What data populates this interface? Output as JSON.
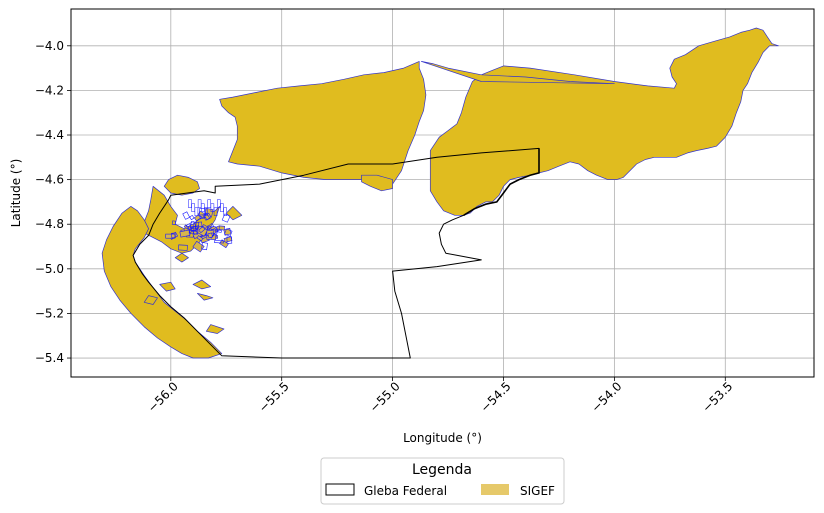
{
  "chart_data": {
    "type": "map",
    "xlabel": "Longitude (°)",
    "ylabel": "Latitude (°)",
    "xlim": [
      -56.45,
      -53.1
    ],
    "ylim": [
      -5.485,
      -3.835
    ],
    "xticks": [
      -56.0,
      -55.5,
      -55.0,
      -54.5,
      -54.0,
      -53.5
    ],
    "xtick_labels": [
      "−56.0",
      "−55.5",
      "−55.0",
      "−54.5",
      "−54.0",
      "−53.5"
    ],
    "yticks": [
      -4.0,
      -4.2,
      -4.4,
      -4.6,
      -4.8,
      -5.0,
      -5.2,
      -5.4
    ],
    "ytick_labels": [
      "−4.0",
      "−4.2",
      "−4.4",
      "−4.6",
      "−4.8",
      "−5.0",
      "−5.2",
      "−5.4"
    ],
    "grid": true,
    "legend": {
      "title": "Legenda",
      "placement": "bottom-center",
      "entries": [
        {
          "label": "Gleba Federal",
          "style": "outline",
          "edge": "#000000",
          "fill": "#ffffff"
        },
        {
          "label": "SIGEF",
          "style": "fill",
          "fill": "#e6c96a"
        }
      ]
    },
    "layers": {
      "sigef": {
        "fill": "#e0bc1f",
        "edge": "#3333cc",
        "polygons": [
          [
            [
              -53.36,
              -3.92
            ],
            [
              -53.33,
              -3.93
            ],
            [
              -53.31,
              -3.96
            ],
            [
              -53.29,
              -3.99
            ],
            [
              -53.26,
              -4.0
            ],
            [
              -53.3,
              -4.0
            ],
            [
              -53.33,
              -4.03
            ],
            [
              -53.35,
              -4.07
            ],
            [
              -53.38,
              -4.12
            ],
            [
              -53.4,
              -4.17
            ],
            [
              -53.42,
              -4.2
            ],
            [
              -53.43,
              -4.25
            ],
            [
              -53.45,
              -4.3
            ],
            [
              -53.47,
              -4.36
            ],
            [
              -53.5,
              -4.41
            ],
            [
              -53.54,
              -4.45
            ],
            [
              -53.58,
              -4.46
            ],
            [
              -53.63,
              -4.47
            ],
            [
              -53.67,
              -4.48
            ],
            [
              -53.72,
              -4.5
            ],
            [
              -53.78,
              -4.5
            ],
            [
              -53.82,
              -4.5
            ],
            [
              -53.86,
              -4.51
            ],
            [
              -53.9,
              -4.53
            ],
            [
              -53.93,
              -4.56
            ],
            [
              -53.96,
              -4.59
            ],
            [
              -53.99,
              -4.6
            ],
            [
              -54.03,
              -4.6
            ],
            [
              -54.08,
              -4.58
            ],
            [
              -54.12,
              -4.56
            ],
            [
              -54.16,
              -4.53
            ],
            [
              -54.2,
              -4.52
            ],
            [
              -54.25,
              -4.54
            ],
            [
              -54.3,
              -4.56
            ],
            [
              -54.34,
              -4.57
            ],
            [
              -54.38,
              -4.58
            ],
            [
              -54.43,
              -4.59
            ],
            [
              -54.47,
              -4.6
            ],
            [
              -54.5,
              -4.63
            ],
            [
              -54.52,
              -4.67
            ],
            [
              -54.55,
              -4.7
            ],
            [
              -54.58,
              -4.7
            ],
            [
              -54.62,
              -4.72
            ],
            [
              -54.65,
              -4.75
            ],
            [
              -54.68,
              -4.76
            ],
            [
              -54.72,
              -4.76
            ],
            [
              -54.77,
              -4.74
            ],
            [
              -54.8,
              -4.7
            ],
            [
              -54.83,
              -4.65
            ],
            [
              -54.83,
              -4.55
            ],
            [
              -54.83,
              -4.47
            ],
            [
              -54.79,
              -4.41
            ],
            [
              -54.75,
              -4.38
            ],
            [
              -54.71,
              -4.35
            ],
            [
              -54.69,
              -4.3
            ],
            [
              -54.67,
              -4.23
            ],
            [
              -54.64,
              -4.16
            ],
            [
              -54.6,
              -4.13
            ],
            [
              -54.55,
              -4.11
            ],
            [
              -54.5,
              -4.09
            ],
            [
              -54.38,
              -4.1
            ],
            [
              -54.18,
              -4.13
            ],
            [
              -54.0,
              -4.16
            ],
            [
              -53.85,
              -4.18
            ],
            [
              -53.73,
              -4.19
            ],
            [
              -53.72,
              -4.17
            ],
            [
              -53.74,
              -4.14
            ],
            [
              -53.75,
              -4.1
            ],
            [
              -53.73,
              -4.06
            ],
            [
              -53.68,
              -4.04
            ],
            [
              -53.62,
              -4.0
            ],
            [
              -53.55,
              -3.98
            ],
            [
              -53.48,
              -3.96
            ],
            [
              -53.43,
              -3.94
            ],
            [
              -53.39,
              -3.93
            ]
          ],
          [
            [
              -54.87,
              -4.07
            ],
            [
              -54.82,
              -4.08
            ],
            [
              -54.75,
              -4.1
            ],
            [
              -54.6,
              -4.13
            ],
            [
              -54.4,
              -4.14
            ],
            [
              -54.2,
              -4.16
            ],
            [
              -54.0,
              -4.17
            ],
            [
              -54.6,
              -4.16
            ],
            [
              -54.87,
              -4.07
            ]
          ],
          [
            [
              -54.88,
              -4.07
            ],
            [
              -54.95,
              -4.1
            ],
            [
              -55.04,
              -4.12
            ],
            [
              -55.13,
              -4.13
            ],
            [
              -55.22,
              -4.15
            ],
            [
              -55.32,
              -4.17
            ],
            [
              -55.42,
              -4.18
            ],
            [
              -55.52,
              -4.19
            ],
            [
              -55.62,
              -4.21
            ],
            [
              -55.72,
              -4.23
            ],
            [
              -55.78,
              -4.24
            ],
            [
              -55.77,
              -4.27
            ],
            [
              -55.74,
              -4.3
            ],
            [
              -55.71,
              -4.32
            ],
            [
              -55.7,
              -4.36
            ],
            [
              -55.7,
              -4.42
            ],
            [
              -55.72,
              -4.47
            ],
            [
              -55.74,
              -4.52
            ],
            [
              -55.7,
              -4.53
            ],
            [
              -55.6,
              -4.54
            ],
            [
              -55.5,
              -4.57
            ],
            [
              -55.4,
              -4.59
            ],
            [
              -55.3,
              -4.6
            ],
            [
              -55.2,
              -4.6
            ],
            [
              -55.1,
              -4.6
            ],
            [
              -55.0,
              -4.62
            ],
            [
              -54.96,
              -4.56
            ],
            [
              -54.93,
              -4.47
            ],
            [
              -54.9,
              -4.4
            ],
            [
              -54.88,
              -4.34
            ],
            [
              -54.86,
              -4.29
            ],
            [
              -54.85,
              -4.22
            ],
            [
              -54.86,
              -4.15
            ],
            [
              -54.88,
              -4.1
            ]
          ],
          [
            [
              -55.14,
              -4.58
            ],
            [
              -55.07,
              -4.58
            ],
            [
              -55.0,
              -4.6
            ],
            [
              -55.0,
              -4.64
            ],
            [
              -55.05,
              -4.65
            ],
            [
              -55.1,
              -4.63
            ],
            [
              -55.14,
              -4.61
            ]
          ],
          [
            [
              -55.97,
              -4.58
            ],
            [
              -55.92,
              -4.59
            ],
            [
              -55.88,
              -4.61
            ],
            [
              -55.87,
              -4.64
            ],
            [
              -55.9,
              -4.66
            ],
            [
              -55.95,
              -4.67
            ],
            [
              -56.0,
              -4.66
            ],
            [
              -56.03,
              -4.63
            ],
            [
              -56.01,
              -4.6
            ]
          ],
          [
            [
              -56.08,
              -4.63
            ],
            [
              -56.03,
              -4.67
            ],
            [
              -56.0,
              -4.72
            ],
            [
              -55.97,
              -4.76
            ],
            [
              -55.98,
              -4.8
            ],
            [
              -55.94,
              -4.82
            ],
            [
              -55.9,
              -4.8
            ],
            [
              -55.85,
              -4.76
            ],
            [
              -55.8,
              -4.74
            ],
            [
              -55.78,
              -4.72
            ],
            [
              -55.8,
              -4.78
            ],
            [
              -55.84,
              -4.84
            ],
            [
              -55.87,
              -4.88
            ],
            [
              -55.91,
              -4.92
            ],
            [
              -55.95,
              -4.93
            ],
            [
              -56.0,
              -4.91
            ],
            [
              -56.04,
              -4.88
            ],
            [
              -56.08,
              -4.86
            ],
            [
              -56.12,
              -4.84
            ],
            [
              -56.12,
              -4.79
            ],
            [
              -56.1,
              -4.74
            ],
            [
              -56.09,
              -4.69
            ]
          ],
          [
            [
              -56.18,
              -4.72
            ],
            [
              -56.22,
              -4.75
            ],
            [
              -56.26,
              -4.81
            ],
            [
              -56.29,
              -4.87
            ],
            [
              -56.31,
              -4.93
            ],
            [
              -56.3,
              -5.01
            ],
            [
              -56.27,
              -5.08
            ],
            [
              -56.23,
              -5.14
            ],
            [
              -56.18,
              -5.2
            ],
            [
              -56.12,
              -5.26
            ],
            [
              -56.06,
              -5.31
            ],
            [
              -56.0,
              -5.35
            ],
            [
              -55.95,
              -5.38
            ],
            [
              -55.9,
              -5.4
            ],
            [
              -55.83,
              -5.4
            ],
            [
              -55.77,
              -5.38
            ],
            [
              -55.82,
              -5.33
            ],
            [
              -55.88,
              -5.28
            ],
            [
              -55.93,
              -5.23
            ],
            [
              -55.98,
              -5.19
            ],
            [
              -56.03,
              -5.15
            ],
            [
              -56.06,
              -5.11
            ],
            [
              -56.09,
              -5.07
            ],
            [
              -56.12,
              -5.03
            ],
            [
              -56.14,
              -5.0
            ],
            [
              -56.16,
              -4.97
            ],
            [
              -56.17,
              -4.94
            ],
            [
              -56.16,
              -4.91
            ],
            [
              -56.12,
              -4.86
            ],
            [
              -56.1,
              -4.82
            ],
            [
              -56.12,
              -4.78
            ],
            [
              -56.15,
              -4.74
            ]
          ],
          [
            [
              -55.9,
              -5.07
            ],
            [
              -55.86,
              -5.09
            ],
            [
              -55.82,
              -5.08
            ],
            [
              -55.86,
              -5.05
            ]
          ],
          [
            [
              -56.05,
              -5.07
            ],
            [
              -56.0,
              -5.06
            ],
            [
              -55.98,
              -5.09
            ],
            [
              -56.02,
              -5.1
            ]
          ],
          [
            [
              -55.88,
              -5.11
            ],
            [
              -55.84,
              -5.12
            ],
            [
              -55.81,
              -5.13
            ],
            [
              -55.85,
              -5.14
            ]
          ],
          [
            [
              -55.95,
              -4.93
            ],
            [
              -55.92,
              -4.95
            ],
            [
              -55.95,
              -4.97
            ],
            [
              -55.98,
              -4.95
            ]
          ],
          [
            [
              -56.1,
              -5.12
            ],
            [
              -56.06,
              -5.13
            ],
            [
              -56.08,
              -5.16
            ],
            [
              -56.12,
              -5.15
            ]
          ],
          [
            [
              -55.82,
              -5.25
            ],
            [
              -55.76,
              -5.27
            ],
            [
              -55.79,
              -5.29
            ],
            [
              -55.84,
              -5.28
            ]
          ],
          [
            [
              -55.72,
              -4.72
            ],
            [
              -55.68,
              -4.76
            ],
            [
              -55.72,
              -4.78
            ],
            [
              -55.75,
              -4.75
            ]
          ]
        ]
      },
      "gleba_federal": {
        "edge": "#000000",
        "path": [
          [
            -56.0,
            -4.67
          ],
          [
            -55.85,
            -4.65
          ],
          [
            -55.8,
            -4.66
          ],
          [
            -55.8,
            -4.63
          ],
          [
            -55.6,
            -4.62
          ],
          [
            -55.4,
            -4.58
          ],
          [
            -55.2,
            -4.53
          ],
          [
            -55.0,
            -4.53
          ],
          [
            -54.8,
            -4.5
          ],
          [
            -54.6,
            -4.48
          ],
          [
            -54.34,
            -4.46
          ],
          [
            -54.34,
            -4.57
          ],
          [
            -54.38,
            -4.58
          ],
          [
            -54.43,
            -4.6
          ],
          [
            -54.47,
            -4.62
          ],
          [
            -54.5,
            -4.66
          ],
          [
            -54.53,
            -4.7
          ],
          [
            -54.58,
            -4.71
          ],
          [
            -54.63,
            -4.73
          ],
          [
            -54.68,
            -4.76
          ],
          [
            -54.73,
            -4.78
          ],
          [
            -54.77,
            -4.8
          ],
          [
            -54.79,
            -4.84
          ],
          [
            -54.78,
            -4.89
          ],
          [
            -54.76,
            -4.93
          ],
          [
            -54.6,
            -4.96
          ],
          [
            -54.8,
            -4.99
          ],
          [
            -55.0,
            -5.01
          ],
          [
            -54.99,
            -5.1
          ],
          [
            -54.96,
            -5.2
          ],
          [
            -54.94,
            -5.3
          ],
          [
            -54.92,
            -5.4
          ],
          [
            -55.5,
            -5.4
          ],
          [
            -55.77,
            -5.39
          ],
          [
            -55.82,
            -5.34
          ],
          [
            -55.88,
            -5.28
          ],
          [
            -55.94,
            -5.22
          ],
          [
            -56.0,
            -5.17
          ],
          [
            -56.05,
            -5.12
          ],
          [
            -56.1,
            -5.06
          ],
          [
            -56.13,
            -5.02
          ],
          [
            -56.16,
            -4.97
          ],
          [
            -56.17,
            -4.94
          ],
          [
            -56.14,
            -4.89
          ],
          [
            -56.1,
            -4.85
          ],
          [
            -56.08,
            -4.8
          ],
          [
            -56.05,
            -4.75
          ],
          [
            -56.03,
            -4.72
          ],
          [
            -56.01,
            -4.69
          ],
          [
            -56.0,
            -4.67
          ]
        ]
      }
    }
  }
}
